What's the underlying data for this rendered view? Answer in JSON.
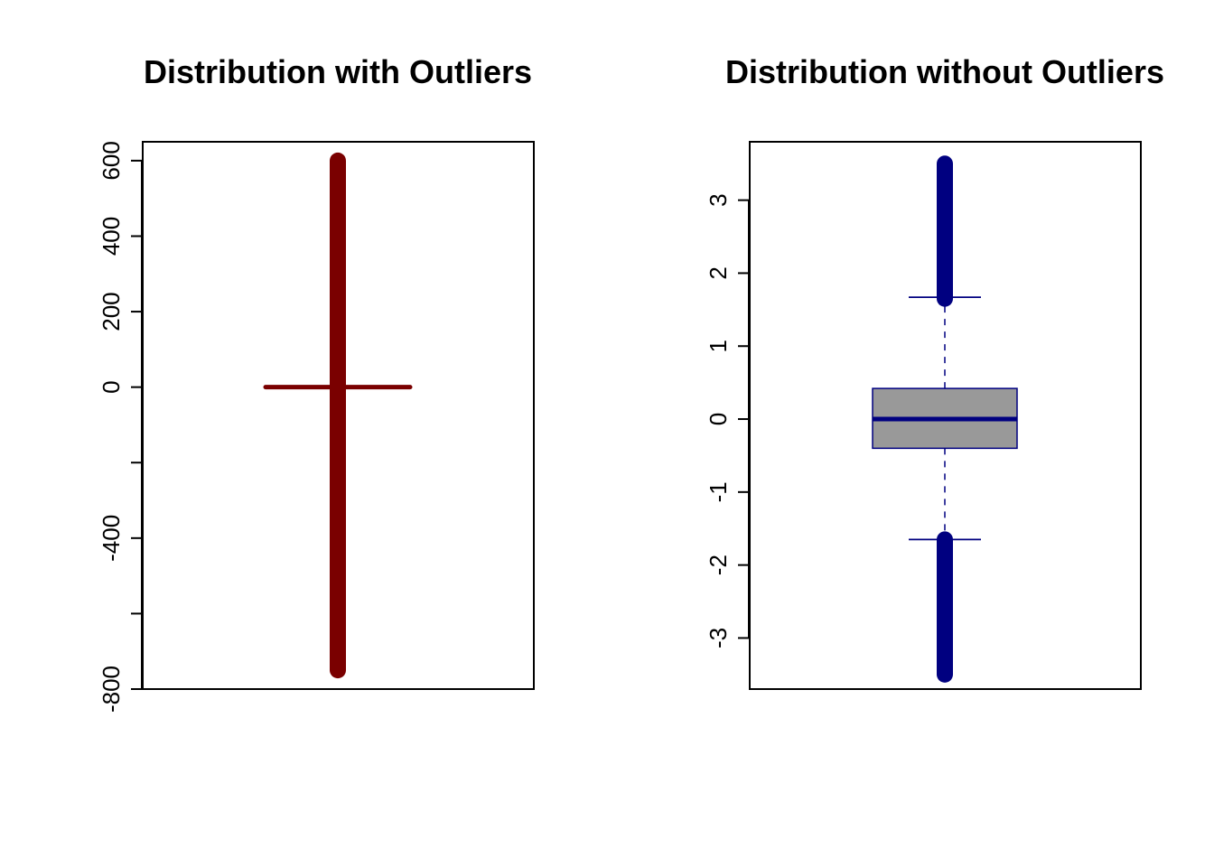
{
  "chart_data": [
    {
      "type": "boxplot",
      "title": "Distribution with Outliers",
      "xlabel": "",
      "ylabel": "",
      "ylim": [
        -800,
        650
      ],
      "y_ticks": [
        -800,
        -600,
        -400,
        -200,
        0,
        200,
        400,
        600
      ],
      "y_tick_labels": [
        "-800",
        "",
        "-400",
        "",
        "0",
        "200",
        "400",
        "600"
      ],
      "grid": false,
      "stats": {
        "min_whisker": -1.65,
        "q1": -0.45,
        "median": 0,
        "q3": 0.45,
        "max_whisker": 1.65
      },
      "outlier_range": [
        -750,
        600
      ],
      "color": "#7a0000",
      "box_fill": "#999999"
    },
    {
      "type": "boxplot",
      "title": "Distribution without Outliers",
      "xlabel": "",
      "ylabel": "",
      "ylim": [
        -3.7,
        3.8
      ],
      "y_ticks": [
        -3,
        -2,
        -1,
        0,
        1,
        2,
        3
      ],
      "y_tick_labels": [
        "-3",
        "-2",
        "-1",
        "0",
        "1",
        "2",
        "3"
      ],
      "grid": false,
      "stats": {
        "min_whisker": -1.65,
        "q1": -0.4,
        "median": 0,
        "q3": 0.42,
        "max_whisker": 1.67
      },
      "outlier_low_range": [
        -3.5,
        -1.65
      ],
      "outlier_high_range": [
        1.65,
        3.5
      ],
      "color": "#000080",
      "box_fill": "#999999"
    }
  ]
}
